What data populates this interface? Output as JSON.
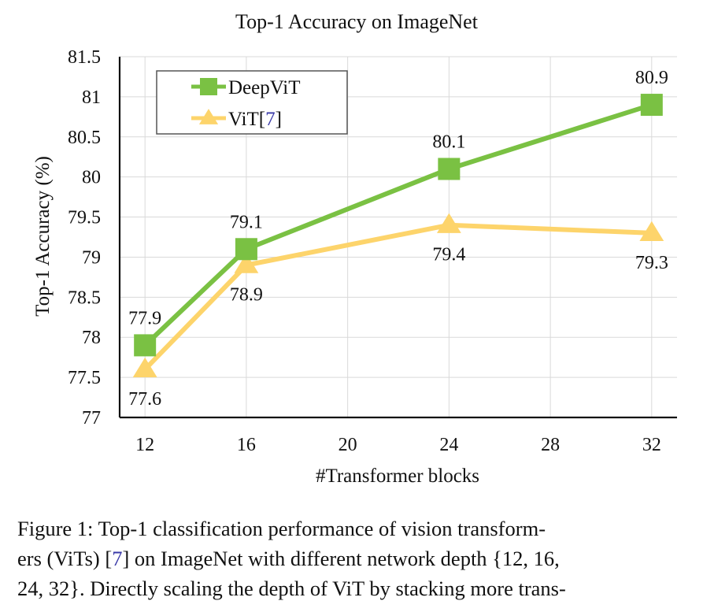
{
  "chart_data": {
    "type": "line",
    "title": "Top-1 Accuracy on ImageNet",
    "xlabel": "#Transformer blocks",
    "ylabel": "Top-1 Accuracy (%)",
    "x_ticks": [
      "12",
      "16",
      "20",
      "24",
      "28",
      "32"
    ],
    "y_ticks": [
      "77",
      "77.5",
      "78",
      "78.5",
      "79",
      "79.5",
      "80",
      "80.5",
      "81",
      "81.5"
    ],
    "xlim": [
      11,
      33
    ],
    "ylim": [
      77,
      81.5
    ],
    "grid": true,
    "legend_position": "top-left",
    "series": [
      {
        "name": "DeepViT",
        "legend_label": "DeepViT",
        "color": "#7ac143",
        "marker": "square",
        "x": [
          12,
          16,
          24,
          32
        ],
        "values": [
          77.9,
          79.1,
          80.1,
          80.9
        ],
        "labels": [
          "77.9",
          "79.1",
          "80.1",
          "80.9"
        ],
        "label_side": "above"
      },
      {
        "name": "ViT [7]",
        "legend_label": "ViT",
        "legend_ref": "7",
        "color": "#fdd46b",
        "marker": "triangle",
        "x": [
          12,
          16,
          24,
          32
        ],
        "values": [
          77.6,
          78.9,
          79.4,
          79.3
        ],
        "labels": [
          "77.6",
          "78.9",
          "79.4",
          "79.3"
        ],
        "label_side": "below"
      }
    ]
  },
  "caption": {
    "line1": "Figure 1: Top-1 classification performance of vision transform-",
    "line2_a": "ers (ViTs) [",
    "line2_ref": "7",
    "line2_b": "] on ImageNet with different network depth {12, 16,",
    "line3": "24, 32}. Directly scaling the depth of ViT by stacking more trans-"
  }
}
